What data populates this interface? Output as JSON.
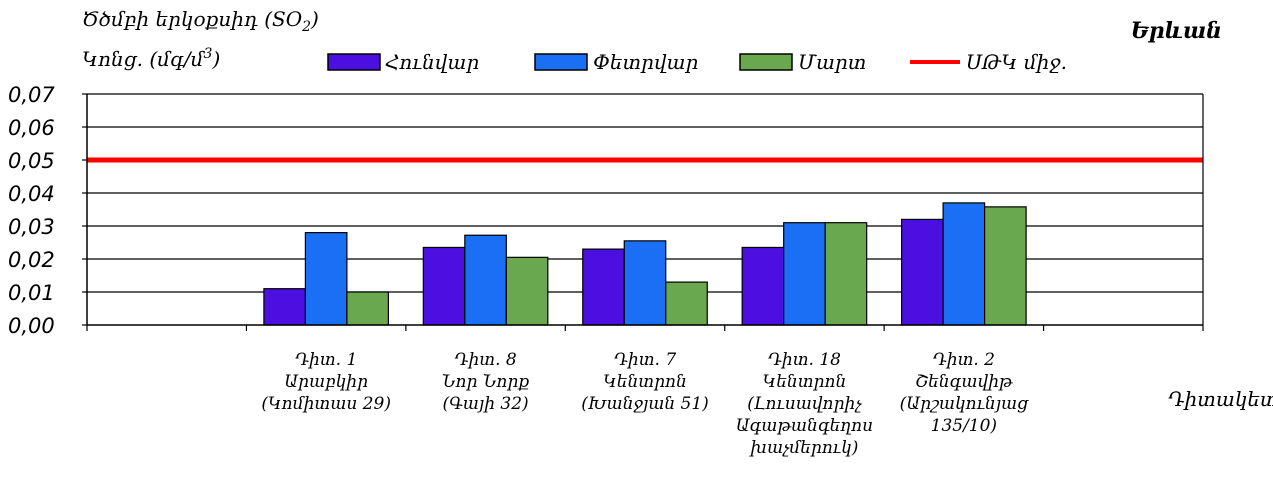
{
  "chart_data": {
    "type": "bar",
    "title_line1_main": "Ծծմբի երկօքսիդ  (SO",
    "title_line1_sub": "2",
    "title_line1_end": ")",
    "ylabel_main": "Կոնց. (մգ/մ",
    "ylabel_sup": "3",
    "ylabel_end": ")",
    "city": "Երևան",
    "xlabel": "Դիտակետ",
    "ylim": [
      0,
      0.07
    ],
    "yticks": [
      "0,00",
      "0,01",
      "0,02",
      "0,03",
      "0,04",
      "0,05",
      "0,06",
      "0,07"
    ],
    "grid": true,
    "legend_position": "top",
    "categories": [
      [
        "Դիտ. 1",
        "Արաբկիր",
        "(Կոմիտաս 29)"
      ],
      [
        "Դիտ. 8",
        "Նոր Նորք",
        "(Գայի 32)"
      ],
      [
        "Դիտ. 7",
        "Կենտրոն",
        "(Խանջյան 51)"
      ],
      [
        "Դիտ. 18",
        "Կենտրոն",
        "(Լուսավորիչ",
        "Ագաթանգեղոս",
        "խաչմերուկ)"
      ],
      [
        "Դիտ. 2",
        "Շենգավիթ",
        "(Արշակունյաց",
        "135/10)"
      ]
    ],
    "series": [
      {
        "name": "Հունվար",
        "color": "#4b0fe0",
        "values": [
          0.011,
          0.0235,
          0.023,
          0.0235,
          0.032
        ]
      },
      {
        "name": "Փետրվար",
        "color": "#1a6ff5",
        "values": [
          0.028,
          0.0272,
          0.0255,
          0.031,
          0.037
        ]
      },
      {
        "name": "Մարտ",
        "color": "#6aa84f",
        "values": [
          0.01,
          0.0205,
          0.013,
          0.031,
          0.0358
        ]
      }
    ],
    "reference_line": {
      "name": "ՍԹԿ միջ.",
      "value": 0.05,
      "color": "#ff0000"
    }
  }
}
